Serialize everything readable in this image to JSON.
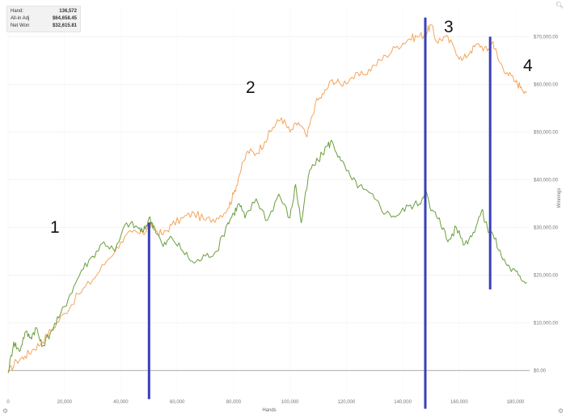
{
  "stats": [
    {
      "label": "Hand:",
      "value": "136,572"
    },
    {
      "label": "All-in Adj",
      "value": "$64,658.45"
    },
    {
      "label": "Net Won",
      "value": "$32,615.81"
    }
  ],
  "annotations": [
    "1",
    "2",
    "3",
    "4"
  ],
  "icons": {
    "top_right": "search-icon",
    "bottom_left": "settings-icon",
    "bottom_right": "settings-icon"
  },
  "colors": {
    "all_in_adj": "#f5a45a",
    "net_won": "#6a9e3c",
    "marker_lines": "#3a3fb8",
    "zero_line": "#bdbdbd",
    "grid": "#ececec"
  },
  "chart_data": {
    "type": "line",
    "xlabel": "Hands",
    "ylabel": "Winnings",
    "xlim": [
      0,
      185000
    ],
    "ylim": [
      -5000,
      76000
    ],
    "y_axis_position": "right",
    "x_ticks": [
      0,
      20000,
      40000,
      60000,
      80000,
      100000,
      120000,
      140000,
      160000,
      180000
    ],
    "x_tick_labels": [
      "0",
      "20,000",
      "40,000",
      "60,000",
      "80,000",
      "100,000",
      "120,000",
      "140,000",
      "160,000",
      "180,000"
    ],
    "y_ticks": [
      0,
      10000,
      20000,
      30000,
      40000,
      50000,
      60000,
      70000
    ],
    "y_tick_labels": [
      "$0.00",
      "$10,000.00",
      "$20,000.00",
      "$30,000.00",
      "$40,000.00",
      "$50,000.00",
      "$60,000.00",
      "$70,000.00"
    ],
    "grid": true,
    "series": [
      {
        "key": "all_in_adj",
        "color": "#f5a45a",
        "x": [
          0,
          3000,
          6000,
          9000,
          12000,
          16000,
          20000,
          25000,
          30000,
          35000,
          40000,
          44000,
          48000,
          50000,
          52000,
          55000,
          58000,
          62000,
          66000,
          70000,
          74000,
          78000,
          80000,
          82000,
          85000,
          88000,
          91000,
          94000,
          97000,
          100000,
          103000,
          106000,
          109000,
          112000,
          115000,
          118000,
          122000,
          126000,
          130000,
          134000,
          138000,
          142000,
          145000,
          148000,
          150000,
          152000,
          155000,
          158000,
          161000,
          164000,
          167000,
          170000,
          172000,
          174000,
          177000,
          180000,
          182000,
          184000
        ],
        "y": [
          -500,
          2000,
          3000,
          4500,
          6000,
          9000,
          12000,
          16000,
          19000,
          23000,
          27000,
          29000,
          28500,
          31000,
          29500,
          28500,
          30500,
          32000,
          33000,
          31500,
          32000,
          34000,
          37000,
          41000,
          46000,
          45500,
          48000,
          51000,
          53000,
          50000,
          52000,
          49000,
          56000,
          58000,
          61000,
          60000,
          61500,
          62000,
          64000,
          66000,
          68000,
          69500,
          70000,
          70500,
          72500,
          69000,
          70000,
          68000,
          65000,
          67000,
          68500,
          67000,
          69000,
          65000,
          62500,
          60500,
          59500,
          58500
        ]
      },
      {
        "key": "net_won",
        "color": "#6a9e3c",
        "x": [
          0,
          2000,
          4000,
          6000,
          8000,
          10000,
          12000,
          15000,
          18000,
          22000,
          26000,
          30000,
          34000,
          38000,
          42000,
          46000,
          48000,
          50000,
          52000,
          55000,
          58000,
          62000,
          66000,
          70000,
          74000,
          78000,
          80000,
          82000,
          84000,
          88000,
          92000,
          96000,
          100000,
          102000,
          104000,
          107000,
          110000,
          113000,
          115000,
          118000,
          122000,
          126000,
          130000,
          134000,
          138000,
          142000,
          146000,
          148000,
          150000,
          153000,
          156000,
          159000,
          162000,
          165000,
          168000,
          170000,
          172000,
          175000,
          178000,
          181000,
          184000
        ],
        "y": [
          -500,
          6000,
          4000,
          8000,
          7000,
          9000,
          5000,
          8000,
          11000,
          16000,
          21000,
          24000,
          27000,
          25000,
          31000,
          30000,
          29000,
          32000,
          30000,
          26000,
          28000,
          25000,
          22500,
          24000,
          25000,
          31000,
          33000,
          35000,
          32000,
          36000,
          31500,
          37000,
          32000,
          39000,
          31000,
          42000,
          44000,
          47000,
          48000,
          44000,
          40000,
          38000,
          36000,
          33000,
          32500,
          34500,
          35000,
          38000,
          33500,
          32000,
          27000,
          30000,
          26500,
          29000,
          33500,
          30000,
          28500,
          24000,
          21500,
          20000,
          18500
        ]
      }
    ],
    "vertical_markers": [
      {
        "x": 50000,
        "y_range": [
          -6000,
          31000
        ]
      },
      {
        "x": 148000,
        "y_range": [
          -8000,
          74000
        ]
      },
      {
        "x": 171000,
        "y_range": [
          17000,
          70000
        ]
      }
    ]
  }
}
